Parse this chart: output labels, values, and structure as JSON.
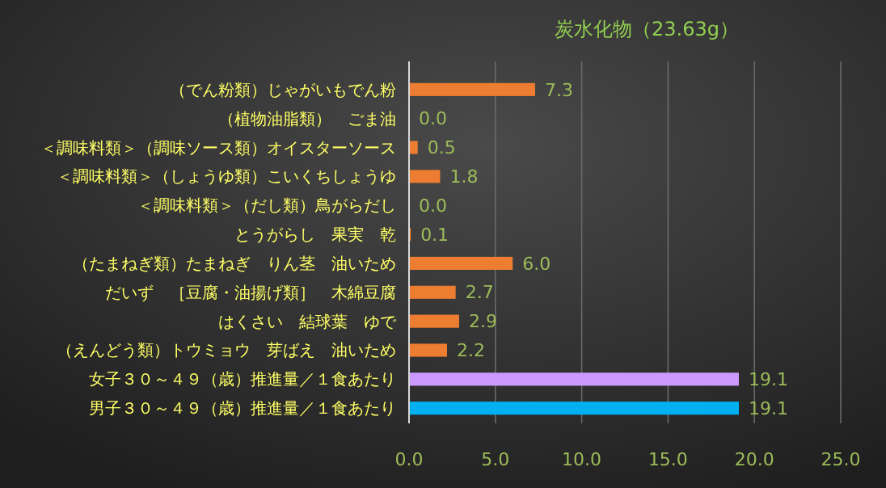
{
  "chart_data": {
    "type": "bar",
    "orientation": "horizontal",
    "title": "炭水化物（23.63g）",
    "categories": [
      "（でん粉類）じゃがいもでん粉",
      "（植物油脂類）　ごま油",
      "＜調味料類＞（調味ソース類）オイスターソース",
      "＜調味料類＞（しょうゆ類）こいくちしょうゆ",
      "＜調味料類＞（だし類）鳥がらだし",
      "とうがらし　果実　乾",
      "（たまねぎ類）たまねぎ　りん茎　油いため",
      "だいず　［豆腐・油揚げ類］　木綿豆腐",
      "はくさい　結球葉　ゆで",
      "（えんどう類）トウミョウ　芽ばえ　油いため",
      "女子３０～４９（歳）推進量／１食あたり",
      "男子３０～４９（歳）推進量／１食あたり"
    ],
    "values": [
      7.3,
      0.0,
      0.5,
      1.8,
      0.0,
      0.1,
      6.0,
      2.7,
      2.9,
      2.2,
      19.1,
      19.1
    ],
    "colors": [
      "#ed7d31",
      "#ed7d31",
      "#ed7d31",
      "#ed7d31",
      "#ed7d31",
      "#ed7d31",
      "#ed7d31",
      "#ed7d31",
      "#ed7d31",
      "#ed7d31",
      "#cc99ff",
      "#00b0f0"
    ],
    "xlim": [
      0,
      25
    ],
    "xticks": [
      {
        "value": 0,
        "label": "0.0"
      },
      {
        "value": 5,
        "label": "5.0"
      },
      {
        "value": 10,
        "label": "10.0"
      },
      {
        "value": 15,
        "label": "15.0"
      },
      {
        "value": 20,
        "label": "20.0"
      },
      {
        "value": 25,
        "label": "25.0"
      }
    ],
    "value_labels": [
      "7.3",
      "0.0",
      "0.5",
      "1.8",
      "0.0",
      "0.1",
      "6.0",
      "2.7",
      "2.9",
      "2.2",
      "19.1",
      "19.1"
    ],
    "grid": "x"
  }
}
